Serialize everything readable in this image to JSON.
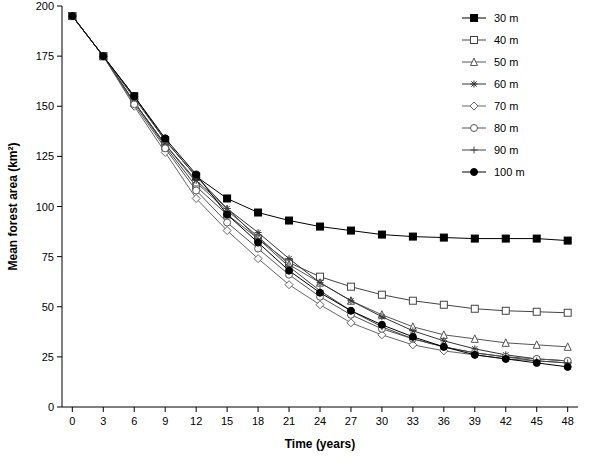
{
  "chart_data": {
    "type": "line",
    "x_label": "Time (years)",
    "y_label": "Mean forest area (km²)",
    "x": [
      0,
      3,
      6,
      9,
      12,
      15,
      18,
      21,
      24,
      27,
      30,
      33,
      36,
      39,
      42,
      45,
      48
    ],
    "xlim": [
      -1,
      49
    ],
    "xticks": [
      0,
      3,
      6,
      9,
      12,
      15,
      18,
      21,
      24,
      27,
      30,
      33,
      36,
      39,
      42,
      45,
      48
    ],
    "ylim": [
      0,
      200
    ],
    "yticks": [
      0,
      25,
      50,
      75,
      100,
      125,
      150,
      175,
      200
    ],
    "grid": false,
    "legend": "top-right",
    "series": [
      {
        "name": "30 m",
        "color": "#000000",
        "marker": "square",
        "values": [
          195,
          175,
          155,
          133,
          115,
          104,
          97,
          93,
          90,
          88,
          86,
          85,
          84.5,
          84,
          84,
          84,
          83
        ]
      },
      {
        "name": "40 m",
        "color": "#444444",
        "marker": "open-square",
        "values": [
          195,
          175,
          152,
          130,
          110,
          96,
          84,
          72,
          65,
          60,
          56,
          53,
          51,
          49,
          48,
          47.5,
          47
        ]
      },
      {
        "name": "50 m",
        "color": "#555555",
        "marker": "open-triangle",
        "values": [
          195,
          175,
          152,
          131,
          112,
          98,
          85,
          71,
          62,
          53,
          46,
          40,
          36,
          34,
          32,
          31,
          30
        ]
      },
      {
        "name": "60 m",
        "color": "#333333",
        "marker": "asterisk",
        "values": [
          195,
          175,
          152,
          131,
          113,
          99,
          87,
          74,
          62,
          53,
          45,
          38,
          33,
          29,
          26,
          24,
          23
        ]
      },
      {
        "name": "70 m",
        "color": "#666666",
        "marker": "open-diamond",
        "values": [
          195,
          175,
          150,
          127,
          104,
          88,
          74,
          61,
          51,
          42,
          36,
          31,
          28,
          26,
          24,
          23,
          22
        ]
      },
      {
        "name": "80 m",
        "color": "#555555",
        "marker": "open-circle",
        "values": [
          195,
          175,
          151,
          129,
          108,
          92,
          79,
          66,
          55,
          46,
          39,
          34,
          30,
          27,
          25,
          24,
          23
        ]
      },
      {
        "name": "90 m",
        "color": "#444444",
        "marker": "plus",
        "values": [
          195,
          175,
          154,
          133,
          115,
          99,
          84,
          70,
          58,
          48,
          40,
          34,
          30,
          27,
          25,
          23,
          22
        ]
      },
      {
        "name": "100 m",
        "color": "#000000",
        "marker": "circle",
        "values": [
          195,
          175,
          155,
          134,
          116,
          96,
          82,
          68,
          57,
          48,
          41,
          35,
          30,
          26,
          24,
          22,
          20
        ]
      }
    ]
  }
}
